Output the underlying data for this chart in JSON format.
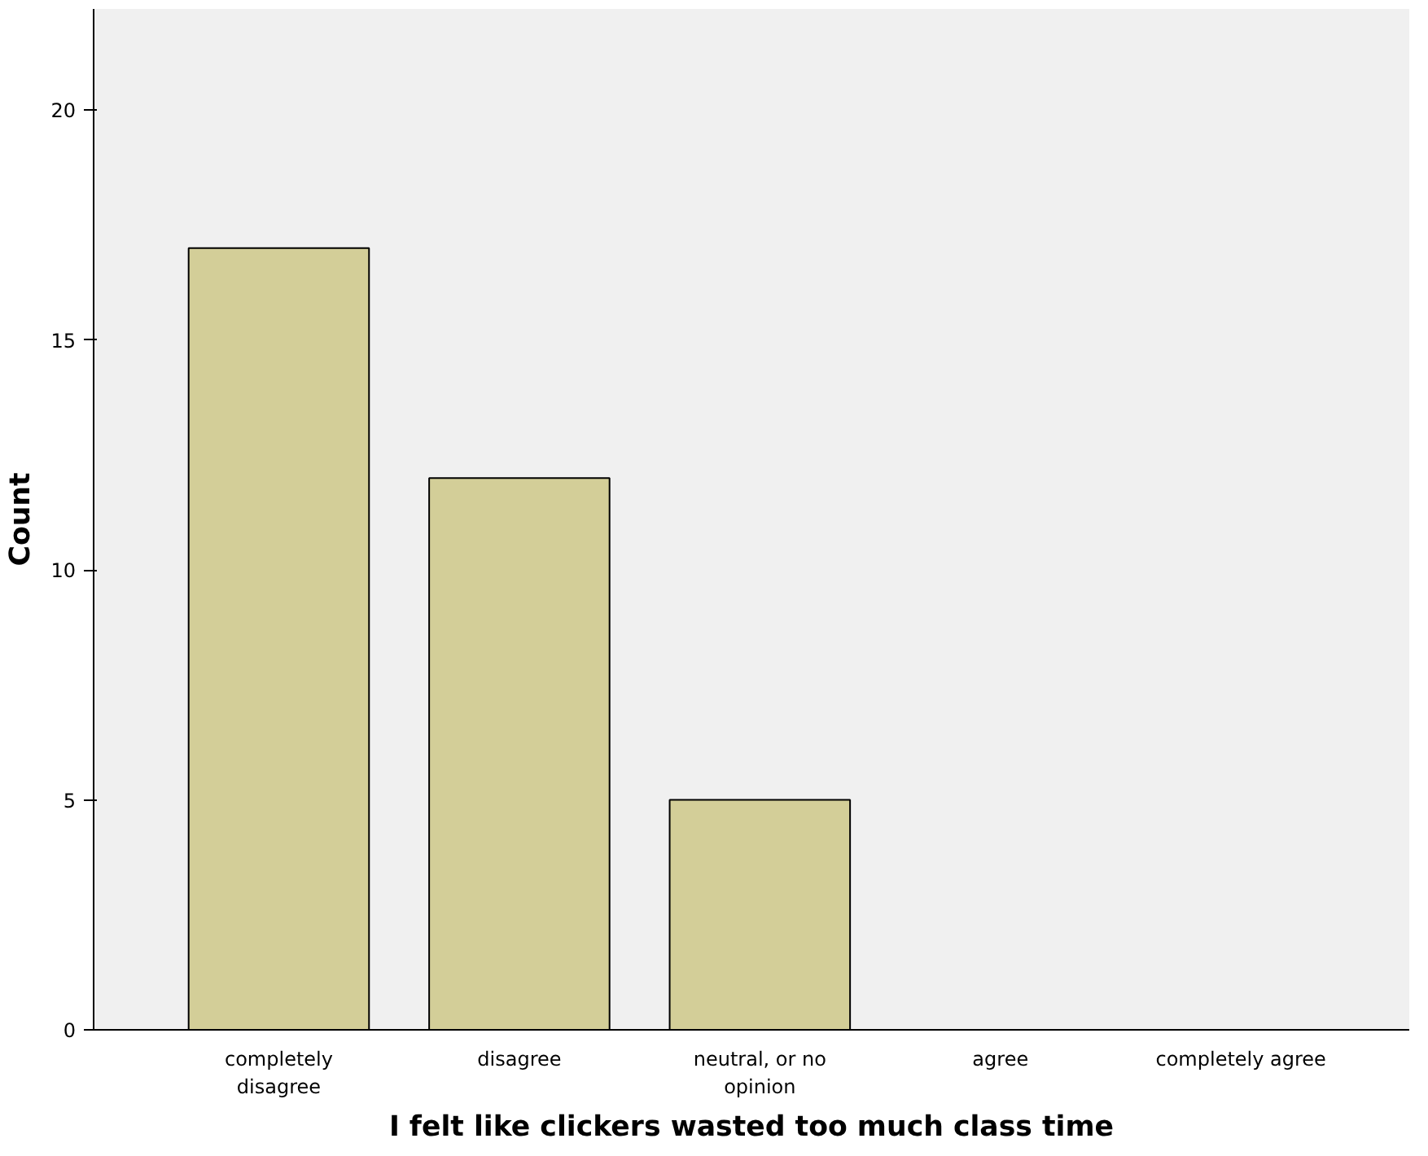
{
  "chart_data": {
    "type": "bar",
    "xlabel": "I felt like clickers wasted too much class time",
    "ylabel": "Count",
    "categories": [
      "completely disagree",
      "disagree",
      "neutral, or no opinion",
      "agree",
      "completely agree"
    ],
    "values": [
      17,
      12,
      5,
      0,
      0
    ],
    "color": "#d3ce98",
    "ylim": [
      0,
      22.2
    ],
    "yticks": [
      0,
      5,
      10,
      15,
      20
    ],
    "grid": false
  }
}
